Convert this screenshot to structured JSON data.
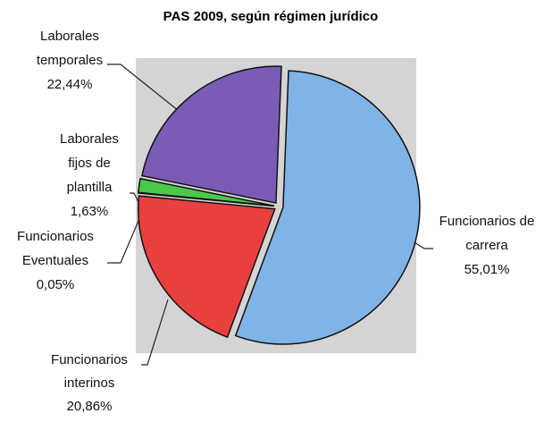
{
  "chart_data": {
    "type": "pie",
    "title": "PAS 2009, según régimen jurídico",
    "categories": [
      "Funcionarios de carrera",
      "Funcionarios interinos",
      "Funcionarios Eventuales",
      "Laborales fijos de plantilla",
      "Laborales temporales"
    ],
    "values": [
      55.01,
      20.86,
      0.05,
      1.63,
      22.44
    ],
    "value_labels": [
      "55,01%",
      "20,86%",
      "0,05%",
      "1,63%",
      "22,44%"
    ],
    "colors": [
      "#80b4e6",
      "#e8403f",
      "#4bc94b",
      "#4bc94b",
      "#7a5cb6"
    ]
  }
}
